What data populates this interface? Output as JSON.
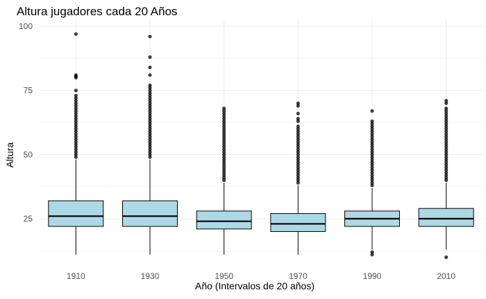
{
  "chart_data": {
    "type": "boxplot",
    "title": "Altura jugadores cada 20 Años",
    "xlabel": "Año (Intervalos de 20 años)",
    "ylabel": "Altura",
    "categories": [
      "1910",
      "1930",
      "1950",
      "1970",
      "1990",
      "2010"
    ],
    "ylim": [
      10,
      100
    ],
    "yticks": [
      25,
      50,
      75,
      100
    ],
    "grid": true,
    "box_fill": "#add8e6",
    "box_stroke": "#000000",
    "boxes": [
      {
        "category": "1910",
        "whisker_low": 11,
        "q1": 22,
        "median": 26,
        "q3": 32,
        "whisker_high": 48,
        "outliers": [
          49,
          50,
          51,
          52,
          53,
          54,
          55,
          56,
          57,
          58,
          59,
          60,
          61,
          62,
          63,
          64,
          65,
          66,
          67,
          68,
          69,
          70,
          71,
          72,
          73,
          75,
          80,
          80.5,
          81,
          97
        ]
      },
      {
        "category": "1930",
        "whisker_low": 11,
        "q1": 22,
        "median": 26,
        "q3": 32,
        "whisker_high": 48,
        "outliers": [
          49,
          50,
          51,
          52,
          53,
          54,
          55,
          56,
          57,
          58,
          59,
          60,
          61,
          62,
          63,
          64,
          65,
          66,
          67,
          68,
          69,
          70,
          71,
          72,
          73,
          74,
          75,
          76,
          77,
          81,
          84,
          88,
          96
        ]
      },
      {
        "category": "1950",
        "whisker_low": 11,
        "q1": 21,
        "median": 24,
        "q3": 28,
        "whisker_high": 39,
        "outliers": [
          40,
          41,
          42,
          43,
          44,
          45,
          46,
          47,
          48,
          49,
          50,
          51,
          52,
          53,
          54,
          55,
          56,
          57,
          58,
          59,
          60,
          61,
          62,
          63,
          64,
          65,
          66,
          67,
          68
        ]
      },
      {
        "category": "1970",
        "whisker_low": 11,
        "q1": 20,
        "median": 23,
        "q3": 27,
        "whisker_high": 38,
        "outliers": [
          39,
          40,
          41,
          42,
          43,
          44,
          45,
          46,
          47,
          48,
          49,
          50,
          51,
          52,
          53,
          54,
          55,
          56,
          57,
          58,
          59,
          60,
          61,
          63,
          64,
          66,
          69,
          70
        ]
      },
      {
        "category": "1990",
        "whisker_low": 13,
        "q1": 22,
        "median": 25,
        "q3": 28,
        "whisker_high": 37,
        "outliers": [
          11,
          12,
          38,
          39,
          40,
          41,
          42,
          43,
          44,
          45,
          46,
          47,
          48,
          49,
          50,
          51,
          52,
          53,
          54,
          55,
          56,
          57,
          58,
          59,
          60,
          61,
          62,
          63,
          67
        ]
      },
      {
        "category": "2010",
        "whisker_low": 13,
        "q1": 22,
        "median": 25,
        "q3": 29,
        "whisker_high": 39,
        "outliers": [
          10,
          40,
          41,
          42,
          43,
          44,
          45,
          46,
          47,
          48,
          49,
          50,
          51,
          52,
          53,
          54,
          55,
          56,
          57,
          58,
          59,
          60,
          61,
          62,
          63,
          64,
          65,
          66,
          67,
          68,
          70,
          71
        ]
      }
    ]
  }
}
